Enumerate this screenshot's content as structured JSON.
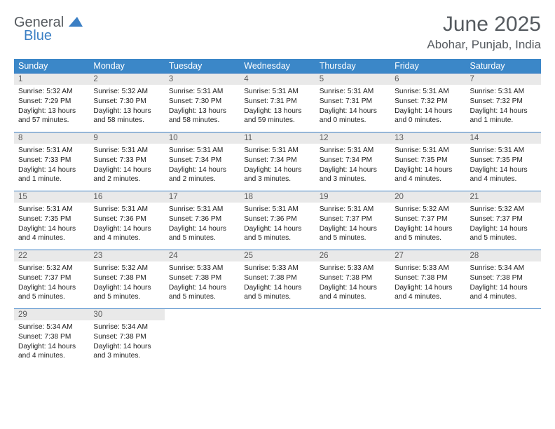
{
  "logo": {
    "text1": "General",
    "text2": "Blue"
  },
  "title": "June 2025",
  "location": "Abohar, Punjab, India",
  "colors": {
    "header_bg": "#3b87c8",
    "header_text": "#ffffff",
    "daynum_bg": "#e9e9e9",
    "border": "#3b7fc4",
    "title_color": "#555a5f",
    "logo_blue": "#3b7fc4",
    "body_text": "#222222",
    "page_bg": "#ffffff"
  },
  "weekdays": [
    "Sunday",
    "Monday",
    "Tuesday",
    "Wednesday",
    "Thursday",
    "Friday",
    "Saturday"
  ],
  "weeks": [
    [
      {
        "n": "1",
        "sr": "Sunrise: 5:32 AM",
        "ss": "Sunset: 7:29 PM",
        "dl": "Daylight: 13 hours and 57 minutes."
      },
      {
        "n": "2",
        "sr": "Sunrise: 5:32 AM",
        "ss": "Sunset: 7:30 PM",
        "dl": "Daylight: 13 hours and 58 minutes."
      },
      {
        "n": "3",
        "sr": "Sunrise: 5:31 AM",
        "ss": "Sunset: 7:30 PM",
        "dl": "Daylight: 13 hours and 58 minutes."
      },
      {
        "n": "4",
        "sr": "Sunrise: 5:31 AM",
        "ss": "Sunset: 7:31 PM",
        "dl": "Daylight: 13 hours and 59 minutes."
      },
      {
        "n": "5",
        "sr": "Sunrise: 5:31 AM",
        "ss": "Sunset: 7:31 PM",
        "dl": "Daylight: 14 hours and 0 minutes."
      },
      {
        "n": "6",
        "sr": "Sunrise: 5:31 AM",
        "ss": "Sunset: 7:32 PM",
        "dl": "Daylight: 14 hours and 0 minutes."
      },
      {
        "n": "7",
        "sr": "Sunrise: 5:31 AM",
        "ss": "Sunset: 7:32 PM",
        "dl": "Daylight: 14 hours and 1 minute."
      }
    ],
    [
      {
        "n": "8",
        "sr": "Sunrise: 5:31 AM",
        "ss": "Sunset: 7:33 PM",
        "dl": "Daylight: 14 hours and 1 minute."
      },
      {
        "n": "9",
        "sr": "Sunrise: 5:31 AM",
        "ss": "Sunset: 7:33 PM",
        "dl": "Daylight: 14 hours and 2 minutes."
      },
      {
        "n": "10",
        "sr": "Sunrise: 5:31 AM",
        "ss": "Sunset: 7:34 PM",
        "dl": "Daylight: 14 hours and 2 minutes."
      },
      {
        "n": "11",
        "sr": "Sunrise: 5:31 AM",
        "ss": "Sunset: 7:34 PM",
        "dl": "Daylight: 14 hours and 3 minutes."
      },
      {
        "n": "12",
        "sr": "Sunrise: 5:31 AM",
        "ss": "Sunset: 7:34 PM",
        "dl": "Daylight: 14 hours and 3 minutes."
      },
      {
        "n": "13",
        "sr": "Sunrise: 5:31 AM",
        "ss": "Sunset: 7:35 PM",
        "dl": "Daylight: 14 hours and 4 minutes."
      },
      {
        "n": "14",
        "sr": "Sunrise: 5:31 AM",
        "ss": "Sunset: 7:35 PM",
        "dl": "Daylight: 14 hours and 4 minutes."
      }
    ],
    [
      {
        "n": "15",
        "sr": "Sunrise: 5:31 AM",
        "ss": "Sunset: 7:35 PM",
        "dl": "Daylight: 14 hours and 4 minutes."
      },
      {
        "n": "16",
        "sr": "Sunrise: 5:31 AM",
        "ss": "Sunset: 7:36 PM",
        "dl": "Daylight: 14 hours and 4 minutes."
      },
      {
        "n": "17",
        "sr": "Sunrise: 5:31 AM",
        "ss": "Sunset: 7:36 PM",
        "dl": "Daylight: 14 hours and 5 minutes."
      },
      {
        "n": "18",
        "sr": "Sunrise: 5:31 AM",
        "ss": "Sunset: 7:36 PM",
        "dl": "Daylight: 14 hours and 5 minutes."
      },
      {
        "n": "19",
        "sr": "Sunrise: 5:31 AM",
        "ss": "Sunset: 7:37 PM",
        "dl": "Daylight: 14 hours and 5 minutes."
      },
      {
        "n": "20",
        "sr": "Sunrise: 5:32 AM",
        "ss": "Sunset: 7:37 PM",
        "dl": "Daylight: 14 hours and 5 minutes."
      },
      {
        "n": "21",
        "sr": "Sunrise: 5:32 AM",
        "ss": "Sunset: 7:37 PM",
        "dl": "Daylight: 14 hours and 5 minutes."
      }
    ],
    [
      {
        "n": "22",
        "sr": "Sunrise: 5:32 AM",
        "ss": "Sunset: 7:37 PM",
        "dl": "Daylight: 14 hours and 5 minutes."
      },
      {
        "n": "23",
        "sr": "Sunrise: 5:32 AM",
        "ss": "Sunset: 7:38 PM",
        "dl": "Daylight: 14 hours and 5 minutes."
      },
      {
        "n": "24",
        "sr": "Sunrise: 5:33 AM",
        "ss": "Sunset: 7:38 PM",
        "dl": "Daylight: 14 hours and 5 minutes."
      },
      {
        "n": "25",
        "sr": "Sunrise: 5:33 AM",
        "ss": "Sunset: 7:38 PM",
        "dl": "Daylight: 14 hours and 5 minutes."
      },
      {
        "n": "26",
        "sr": "Sunrise: 5:33 AM",
        "ss": "Sunset: 7:38 PM",
        "dl": "Daylight: 14 hours and 4 minutes."
      },
      {
        "n": "27",
        "sr": "Sunrise: 5:33 AM",
        "ss": "Sunset: 7:38 PM",
        "dl": "Daylight: 14 hours and 4 minutes."
      },
      {
        "n": "28",
        "sr": "Sunrise: 5:34 AM",
        "ss": "Sunset: 7:38 PM",
        "dl": "Daylight: 14 hours and 4 minutes."
      }
    ],
    [
      {
        "n": "29",
        "sr": "Sunrise: 5:34 AM",
        "ss": "Sunset: 7:38 PM",
        "dl": "Daylight: 14 hours and 4 minutes."
      },
      {
        "n": "30",
        "sr": "Sunrise: 5:34 AM",
        "ss": "Sunset: 7:38 PM",
        "dl": "Daylight: 14 hours and 3 minutes."
      },
      null,
      null,
      null,
      null,
      null
    ]
  ]
}
